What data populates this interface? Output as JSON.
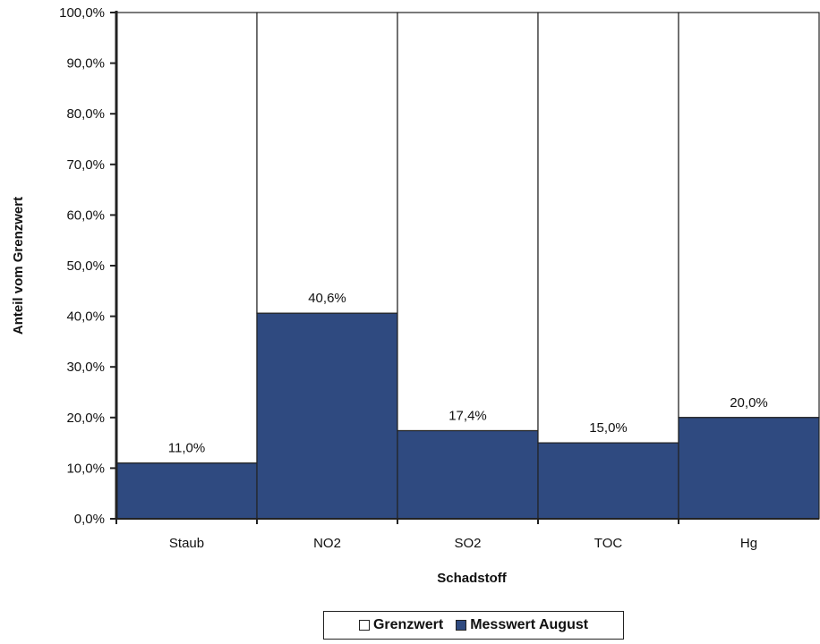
{
  "chart_data": {
    "type": "bar",
    "stacked": true,
    "categories": [
      "Staub",
      "NO2",
      "SO2",
      "TOC",
      "Hg"
    ],
    "series": [
      {
        "name": "Grenzwert",
        "color": "#ffffff",
        "values": [
          89.0,
          59.4,
          82.6,
          85.0,
          80.0
        ]
      },
      {
        "name": "Messwert August",
        "color": "#2f4a80",
        "values": [
          11.0,
          40.6,
          17.4,
          15.0,
          20.0
        ]
      }
    ],
    "data_labels": [
      "11,0%",
      "40,6%",
      "17,4%",
      "15,0%",
      "20,0%"
    ],
    "ylim": [
      0,
      100
    ],
    "yticks": [
      "0,0%",
      "10,0%",
      "20,0%",
      "30,0%",
      "40,0%",
      "50,0%",
      "60,0%",
      "70,0%",
      "80,0%",
      "90,0%",
      "100,0%"
    ],
    "xlabel": "Schadstoff",
    "ylabel": "Anteil vom Grenzwert",
    "legend_position": "bottom",
    "grid": false
  },
  "legend": {
    "items": [
      {
        "label": "Grenzwert",
        "color": "#ffffff"
      },
      {
        "label": "Messwert August",
        "color": "#2f4a80"
      }
    ]
  }
}
